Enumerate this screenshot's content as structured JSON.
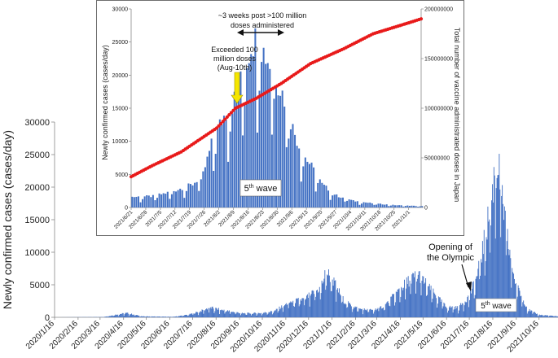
{
  "chart_data": [
    {
      "type": "bar",
      "title": "",
      "xlabel": "",
      "ylabel": "Newly confirmed cases (cases/day)",
      "ylim": [
        0,
        30000
      ],
      "yticks": [
        0,
        5000,
        10000,
        15000,
        20000,
        25000,
        30000
      ],
      "grid": false,
      "bar_color": "#4472c4",
      "x_start": "2020/1/16",
      "x_end": "2021/11/10",
      "x_tick_labels": [
        "2020/1/16",
        "2020/2/16",
        "2020/3/16",
        "2020/4/16",
        "2020/5/16",
        "2020/6/16",
        "2020/7/16",
        "2020/8/16",
        "2020/9/16",
        "2020/10/16",
        "2020/11/16",
        "2020/12/16",
        "2021/1/16",
        "2021/2/16",
        "2021/3/16",
        "2021/4/16",
        "2021/5/16",
        "2021/6/16",
        "2021/7/16",
        "2021/8/16",
        "2021/9/16",
        "2021/10/16"
      ],
      "series": [
        {
          "name": "Newly confirmed cases",
          "anchor_dates": [
            "2020/1/16",
            "2020/3/20",
            "2020/4/10",
            "2020/4/20",
            "2020/5/10",
            "2020/6/20",
            "2020/7/10",
            "2020/7/25",
            "2020/8/7",
            "2020/8/25",
            "2020/9/20",
            "2020/10/15",
            "2020/11/1",
            "2020/11/20",
            "2020/12/10",
            "2020/12/31",
            "2021/1/8",
            "2021/1/15",
            "2021/2/1",
            "2021/2/20",
            "2021/3/10",
            "2021/3/25",
            "2021/4/15",
            "2021/4/28",
            "2021/5/10",
            "2021/5/25",
            "2021/6/15",
            "2021/7/1",
            "2021/7/15",
            "2021/7/25",
            "2021/8/5",
            "2021/8/15",
            "2021/8/20",
            "2021/8/25",
            "2021/9/5",
            "2021/9/15",
            "2021/10/1",
            "2021/10/15",
            "2021/11/10"
          ],
          "anchor_values": [
            0,
            50,
            500,
            650,
            150,
            80,
            400,
            900,
            1500,
            1100,
            600,
            650,
            1000,
            2300,
            2800,
            4500,
            7000,
            6000,
            2400,
            1300,
            1100,
            1700,
            4300,
            5800,
            6600,
            4300,
            1600,
            1500,
            3200,
            6000,
            12000,
            19000,
            25500,
            21000,
            11000,
            5000,
            1200,
            400,
            150
          ]
        }
      ],
      "annotations": {
        "olympic_label": "Opening of\nthe Olympic",
        "wave_label_base": "5",
        "wave_label_sup": "th",
        "wave_label_suffix": " wave"
      }
    },
    {
      "type": "bar+scatter",
      "title": "",
      "xlabel": "",
      "ylabel": "Newly confirmed cases (cases/day)",
      "y2label": "Total number of vaccine administrated doses in Japan",
      "ylim": [
        0,
        30000
      ],
      "y2lim": [
        0,
        200000000
      ],
      "yticks": [
        0,
        5000,
        10000,
        15000,
        20000,
        25000,
        30000
      ],
      "y2ticks": [
        0,
        50000000,
        100000000,
        150000000,
        200000000
      ],
      "grid": false,
      "x_start": "2021/6/21",
      "x_end": "2021/11/7",
      "x_tick_labels": [
        "2021/6/21",
        "2021/6/28",
        "2021/7/5",
        "2021/7/12",
        "2021/7/19",
        "2021/7/26",
        "2021/8/2",
        "2021/8/9",
        "2021/8/16",
        "2021/8/23",
        "2021/8/30",
        "2021/9/6",
        "2021/9/13",
        "2021/9/20",
        "2021/9/27",
        "2021/10/4",
        "2021/10/11",
        "2021/10/18",
        "2021/10/25",
        "2021/11/1"
      ],
      "series": [
        {
          "name": "Newly confirmed cases",
          "color": "#4472c4",
          "anchor_dates": [
            "2021/6/21",
            "2021/7/1",
            "2021/7/10",
            "2021/7/20",
            "2021/7/25",
            "2021/7/29",
            "2021/8/2",
            "2021/8/5",
            "2021/8/8",
            "2021/8/12",
            "2021/8/15",
            "2021/8/17",
            "2021/8/20",
            "2021/8/24",
            "2021/8/28",
            "2021/9/2",
            "2021/9/6",
            "2021/9/10",
            "2021/9/15",
            "2021/9/20",
            "2021/9/27",
            "2021/10/5",
            "2021/10/15",
            "2021/10/25",
            "2021/11/7"
          ],
          "anchor_values": [
            1600,
            1700,
            2400,
            3500,
            5000,
            9500,
            12500,
            14500,
            15500,
            19000,
            22000,
            25000,
            25500,
            23000,
            20500,
            16500,
            12000,
            8500,
            6200,
            3500,
            1800,
            1000,
            600,
            350,
            200
          ]
        },
        {
          "name": "Total vaccine doses",
          "color": "#e81a1a",
          "axis": "right",
          "anchor_dates": [
            "2021/6/21",
            "2021/7/1",
            "2021/7/15",
            "2021/8/1",
            "2021/8/10",
            "2021/8/20",
            "2021/9/1",
            "2021/9/15",
            "2021/10/1",
            "2021/10/15",
            "2021/11/1",
            "2021/11/7"
          ],
          "anchor_values": [
            31000000,
            42000000,
            56000000,
            80000000,
            100000000,
            110000000,
            125000000,
            145000000,
            160000000,
            175000000,
            186000000,
            190000000
          ]
        }
      ],
      "annotations": {
        "doses_note_line1": "~3 weeks post >100 million",
        "doses_note_line2": "doses administered",
        "exceeded_line1": "Exceeded 100",
        "exceeded_line2": "million doses",
        "exceeded_line3": "(Aug-10th)",
        "wave_label_base": "5",
        "wave_label_sup": "th",
        "wave_label_suffix": " wave"
      }
    }
  ]
}
